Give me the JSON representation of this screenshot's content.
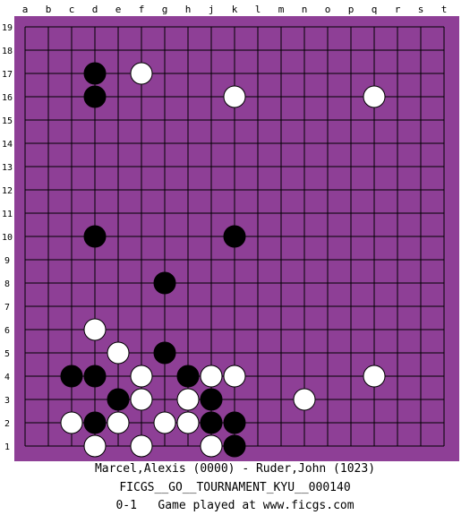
{
  "board": {
    "size": 19,
    "board_color": "#8e3f96",
    "line_color": "#000000",
    "black_color": "#000000",
    "white_color": "#ffffff",
    "columns": [
      "a",
      "b",
      "c",
      "d",
      "e",
      "f",
      "g",
      "h",
      "j",
      "k",
      "l",
      "m",
      "n",
      "o",
      "p",
      "q",
      "r",
      "s",
      "t"
    ],
    "rows": [
      "19",
      "18",
      "17",
      "16",
      "15",
      "14",
      "13",
      "12",
      "11",
      "10",
      "9",
      "8",
      "7",
      "6",
      "5",
      "4",
      "3",
      "2",
      "1"
    ],
    "stones": [
      {
        "color": "black",
        "point": "d17"
      },
      {
        "color": "black",
        "point": "d16"
      },
      {
        "color": "white",
        "point": "f17"
      },
      {
        "color": "white",
        "point": "k16"
      },
      {
        "color": "white",
        "point": "q16"
      },
      {
        "color": "black",
        "point": "d10"
      },
      {
        "color": "black",
        "point": "k10"
      },
      {
        "color": "black",
        "point": "g8"
      },
      {
        "color": "white",
        "point": "d6"
      },
      {
        "color": "white",
        "point": "e5"
      },
      {
        "color": "black",
        "point": "g5"
      },
      {
        "color": "black",
        "point": "c4"
      },
      {
        "color": "black",
        "point": "d4"
      },
      {
        "color": "white",
        "point": "f4"
      },
      {
        "color": "black",
        "point": "h4"
      },
      {
        "color": "white",
        "point": "j4"
      },
      {
        "color": "white",
        "point": "k4"
      },
      {
        "color": "white",
        "point": "q4"
      },
      {
        "color": "black",
        "point": "e3"
      },
      {
        "color": "white",
        "point": "f3"
      },
      {
        "color": "white",
        "point": "h3"
      },
      {
        "color": "black",
        "point": "j3"
      },
      {
        "color": "white",
        "point": "n3"
      },
      {
        "color": "white",
        "point": "c2"
      },
      {
        "color": "black",
        "point": "d2"
      },
      {
        "color": "white",
        "point": "e2"
      },
      {
        "color": "white",
        "point": "g2"
      },
      {
        "color": "white",
        "point": "h2"
      },
      {
        "color": "black",
        "point": "j2"
      },
      {
        "color": "black",
        "point": "k2"
      },
      {
        "color": "white",
        "point": "d1"
      },
      {
        "color": "white",
        "point": "f1"
      },
      {
        "color": "white",
        "point": "j1"
      },
      {
        "color": "black",
        "point": "k1"
      }
    ]
  },
  "captions": {
    "players": "Marcel,Alexis (0000) - Ruder,John (1023)",
    "event": "FICGS__GO__TOURNAMENT_KYU__000140",
    "result": "0-1   Game played at www.ficgs.com"
  }
}
